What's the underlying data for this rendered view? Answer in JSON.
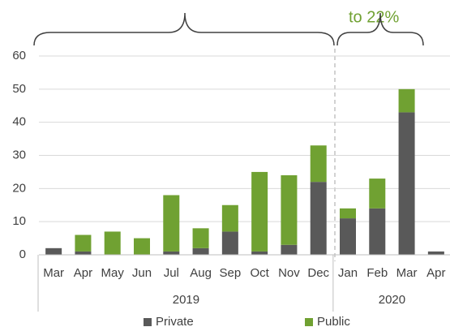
{
  "chart_data": {
    "type": "stacked_bar",
    "annotation": "to 22%",
    "groups": [
      {
        "name": "2019",
        "categories": [
          "Mar",
          "Apr",
          "May",
          "Jun",
          "Jul",
          "Aug",
          "Sep",
          "Oct",
          "Nov",
          "Dec"
        ]
      },
      {
        "name": "2020",
        "categories": [
          "Jan",
          "Feb",
          "Mar",
          "Apr"
        ]
      }
    ],
    "series": [
      {
        "name": "Private",
        "color": "#595959",
        "values": [
          2,
          1,
          0,
          0,
          1,
          2,
          7,
          1,
          3,
          22,
          11,
          14,
          43,
          1
        ]
      },
      {
        "name": "Public",
        "color": "#70a132",
        "values": [
          0,
          5,
          7,
          5,
          17,
          6,
          8,
          24,
          21,
          11,
          3,
          9,
          7,
          0
        ]
      }
    ],
    "ylim": [
      0,
      60
    ],
    "yticks": [
      0,
      10,
      20,
      30,
      40,
      50,
      60
    ],
    "grid": true
  }
}
